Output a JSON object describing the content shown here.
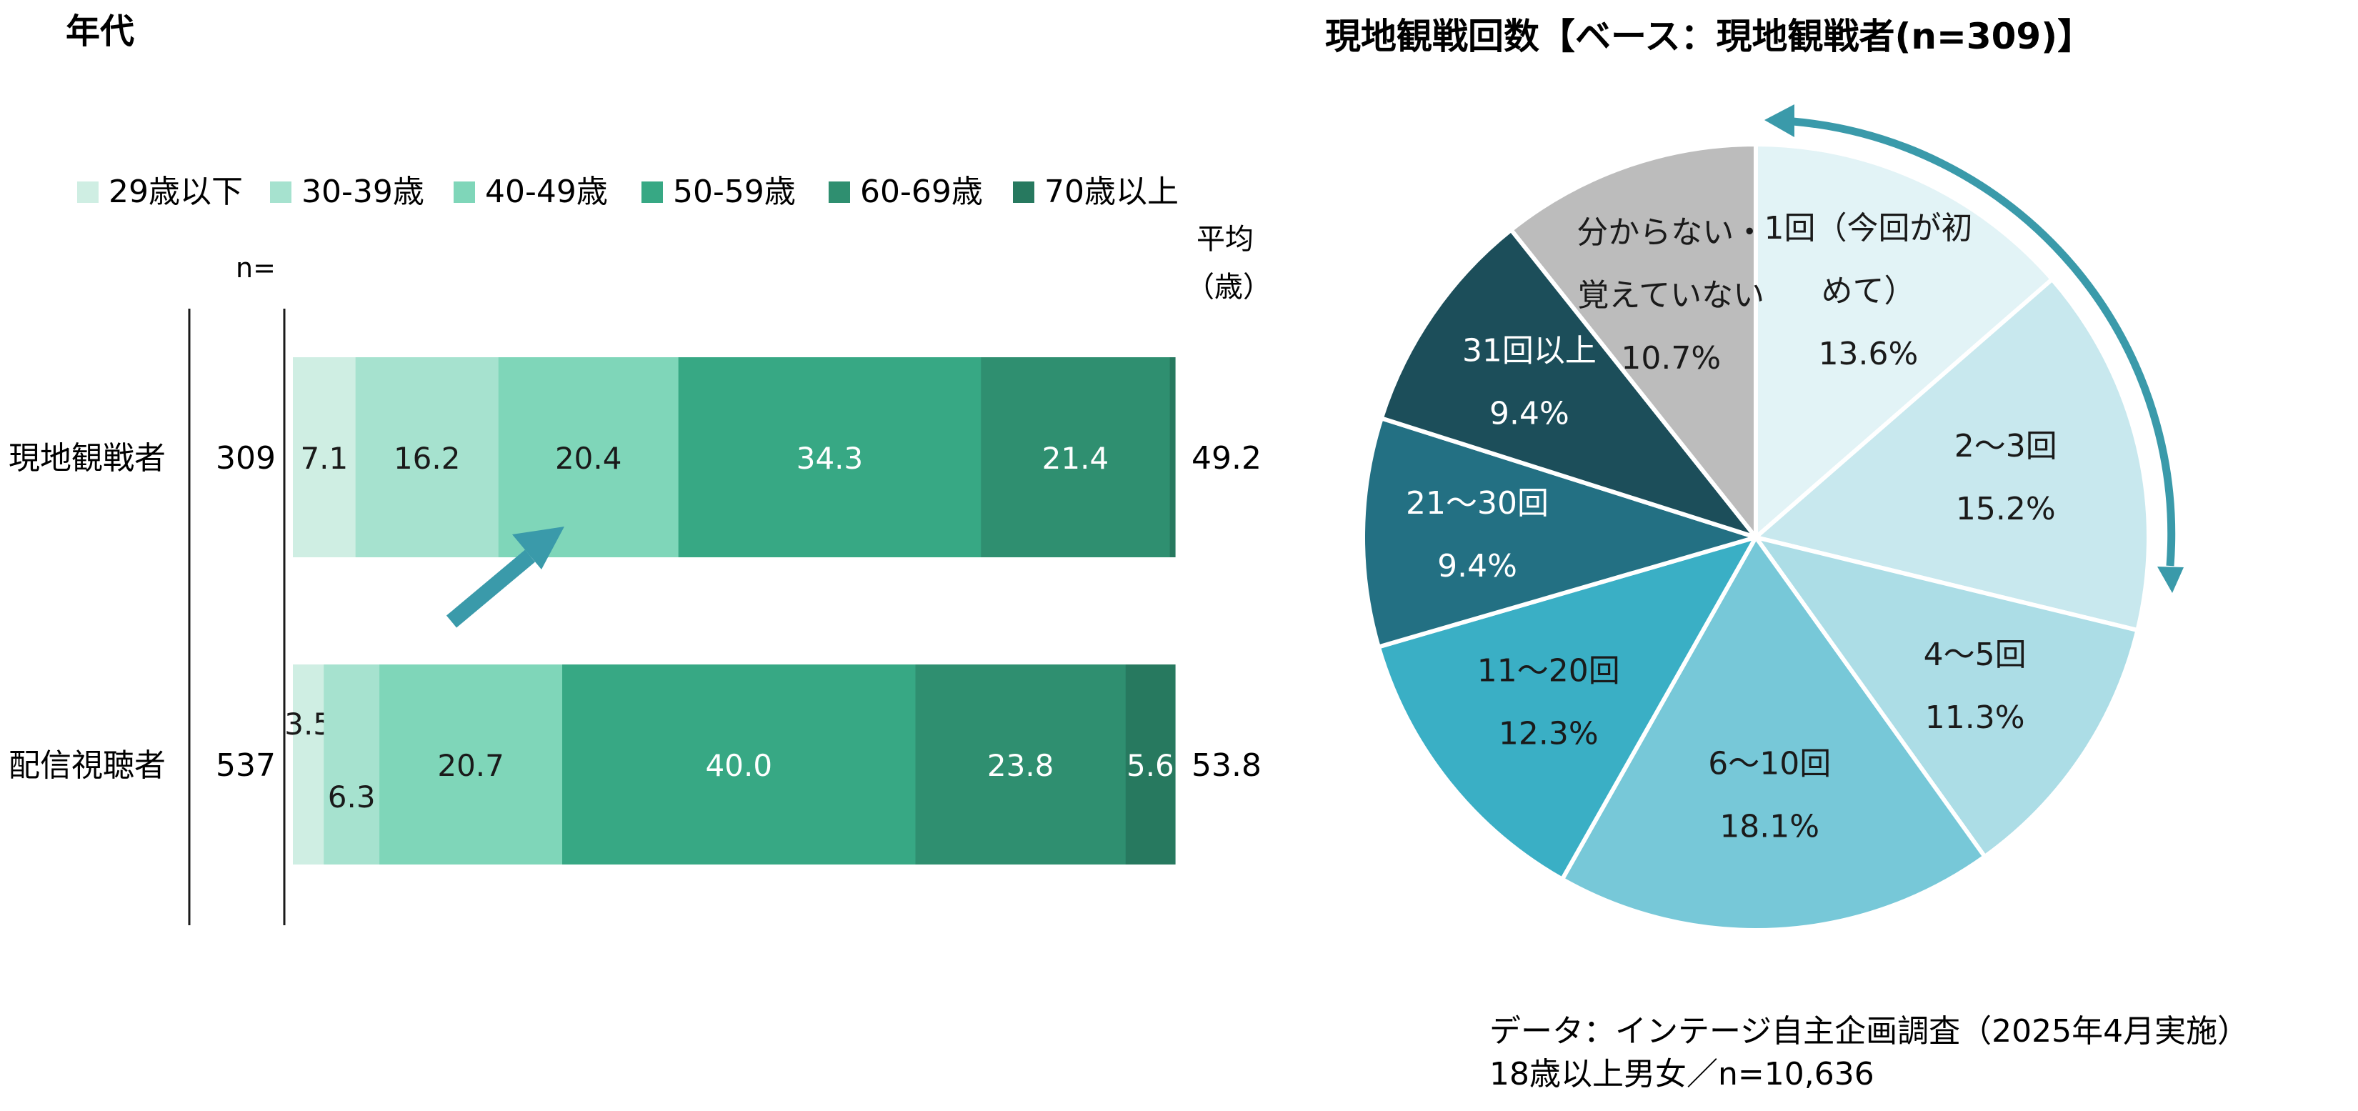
{
  "left_chart": {
    "title": "年代",
    "n_header": "n=",
    "avg_header": [
      "平均",
      "（歳）"
    ],
    "chart_data": {
      "type": "bar",
      "orientation": "horizontal",
      "stacked": true,
      "unit": "%",
      "title": "年代",
      "legend_position": "top",
      "legend": [
        "29歳以下",
        "30-39歳",
        "40-49歳",
        "50-59歳",
        "60-69歳",
        "70歳以上"
      ],
      "colors": [
        "#cfeee3",
        "#a6e2cf",
        "#7fd6b9",
        "#37a884",
        "#2f8f70",
        "#27795f"
      ],
      "categories": [
        "現地観戦者",
        "配信視聴者"
      ],
      "n": [
        "309",
        "537"
      ],
      "average": [
        "49.2",
        "53.8"
      ],
      "series": [
        {
          "name": "29歳以下",
          "values": [
            7.1,
            3.5
          ]
        },
        {
          "name": "30-39歳",
          "values": [
            16.2,
            6.3
          ]
        },
        {
          "name": "40-49歳",
          "values": [
            20.4,
            20.7
          ]
        },
        {
          "name": "50-59歳",
          "values": [
            34.3,
            40.0
          ]
        },
        {
          "name": "60-69歳",
          "values": [
            21.4,
            23.8
          ]
        },
        {
          "name": "70歳以上",
          "values": [
            0.6,
            5.6
          ]
        }
      ],
      "data_labels": [
        [
          "7.1",
          "16.2",
          "20.4",
          "34.3",
          "21.4",
          ""
        ],
        [
          "3.5",
          "6.3",
          "20.7",
          "40.0",
          "23.8",
          "5.6"
        ]
      ],
      "label_colors": [
        "#1a1a1a",
        "#1a1a1a",
        "#1a1a1a",
        "#ffffff",
        "#ffffff",
        "#ffffff"
      ]
    }
  },
  "right_chart": {
    "title": "現地観戦回数【ベース：現地観戦者(n=309)】",
    "chart_data": {
      "type": "pie",
      "title": "現地観戦回数【ベース：現地観戦者(n=309)】",
      "start_angle_deg": 0,
      "direction": "clockwise",
      "slices": [
        {
          "label": [
            "1回（今回が初",
            "めて）"
          ],
          "value": 13.6,
          "value_label": "13.6%",
          "color": "#e2f3f6",
          "text_color": "#1a1a1a"
        },
        {
          "label": [
            "2～3回"
          ],
          "value": 15.2,
          "value_label": "15.2%",
          "color": "#c8e8ee",
          "text_color": "#1a1a1a"
        },
        {
          "label": [
            "4～5回"
          ],
          "value": 11.3,
          "value_label": "11.3%",
          "color": "#acdde6",
          "text_color": "#1a1a1a"
        },
        {
          "label": [
            "6～10回"
          ],
          "value": 18.1,
          "value_label": "18.1%",
          "color": "#77c8d8",
          "text_color": "#1a1a1a"
        },
        {
          "label": [
            "11～20回"
          ],
          "value": 12.3,
          "value_label": "12.3%",
          "color": "#3aafc5",
          "text_color": "#1a1a1a"
        },
        {
          "label": [
            "21～30回"
          ],
          "value": 9.4,
          "value_label": "9.4%",
          "color": "#237083",
          "text_color": "#ffffff"
        },
        {
          "label": [
            "31回以上"
          ],
          "value": 9.4,
          "value_label": "9.4%",
          "color": "#1c4e5a",
          "text_color": "#ffffff"
        },
        {
          "label": [
            "分からない・",
            "覚えていない"
          ],
          "value": 10.7,
          "value_label": "10.7%",
          "color": "#bcbcbc",
          "text_color": "#1a1a1a"
        }
      ]
    }
  },
  "footnote": {
    "line1": "データ：インテージ自主企画調査（2025年4月実施）",
    "line2": "18歳以上男女／n=10,636"
  },
  "colors": {
    "arrow": "#3a9aaa",
    "axis": "#1a1a1a",
    "slice_border": "#ffffff"
  }
}
